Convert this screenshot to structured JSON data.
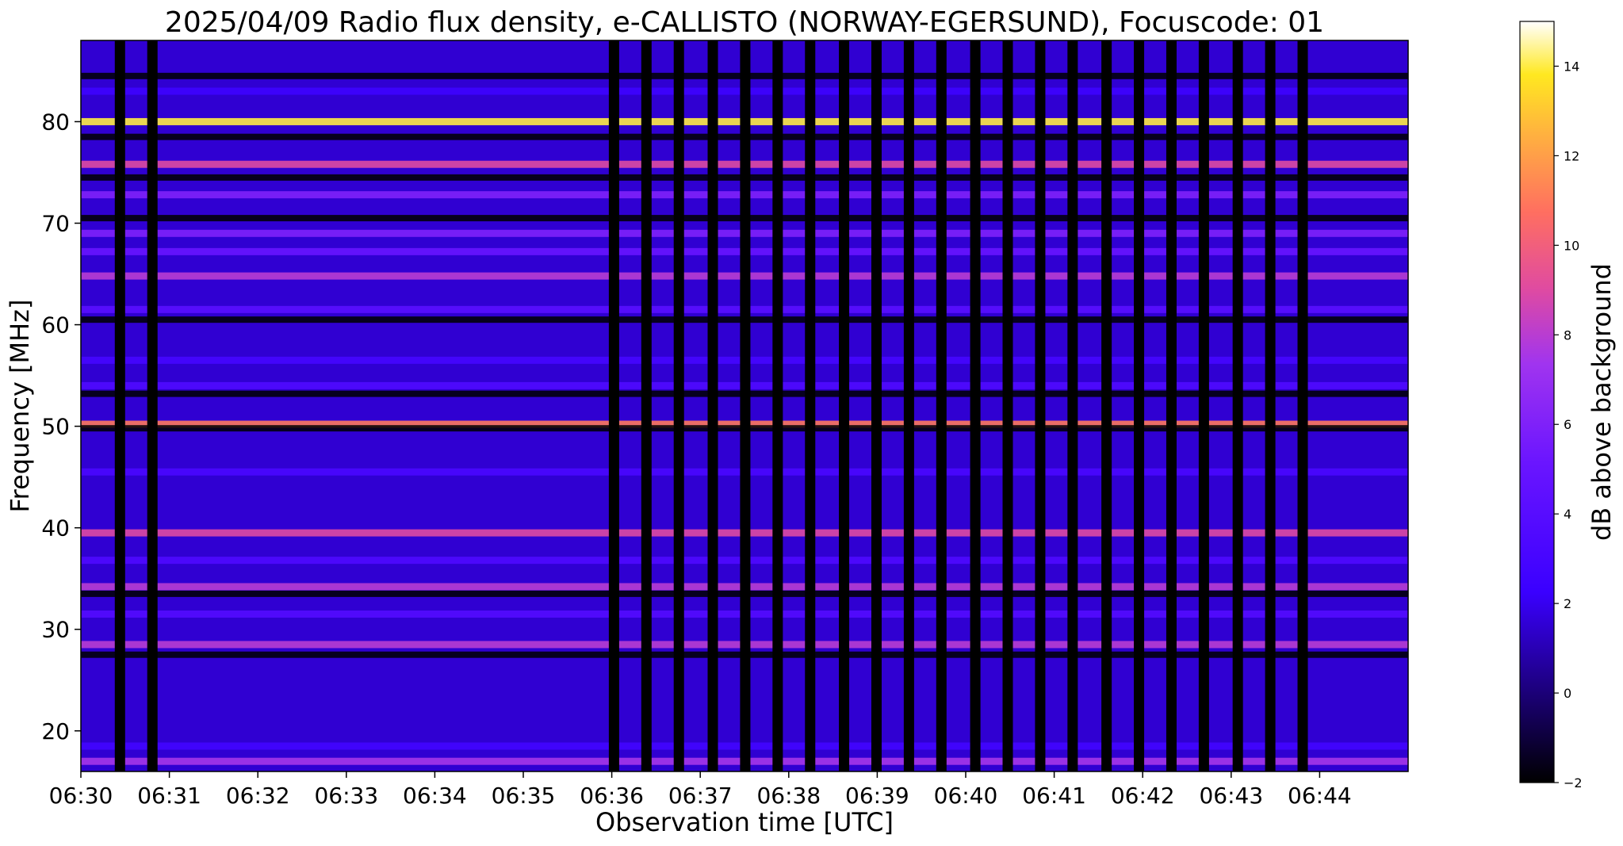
{
  "chart_data": [
    {
      "type": "heatmap",
      "title": "2025/04/09  Radio flux density, e-CALLISTO (NORWAY-EGERSUND), Focuscode: 01",
      "xlabel": "Observation time [UTC]",
      "ylabel": "Frequency [MHz]",
      "xlim": [
        "06:30",
        "06:45"
      ],
      "ylim": [
        16,
        88
      ],
      "x_ticks": [
        "06:30",
        "06:31",
        "06:32",
        "06:33",
        "06:34",
        "06:35",
        "06:36",
        "06:37",
        "06:38",
        "06:39",
        "06:40",
        "06:41",
        "06:42",
        "06:43",
        "06:44"
      ],
      "y_ticks": [
        20,
        30,
        40,
        50,
        60,
        70,
        80
      ],
      "colormap": "gnuplot2",
      "grid": false,
      "background_level_db": 1.5,
      "frequency_bands": [
        {
          "mhz": 17.0,
          "db": 7.5
        },
        {
          "mhz": 18.5,
          "db": 2.8
        },
        {
          "mhz": 28.5,
          "db": 8.0
        },
        {
          "mhz": 31.5,
          "db": 3.8
        },
        {
          "mhz": 34.2,
          "db": 8.0
        },
        {
          "mhz": 36.8,
          "db": 3.5
        },
        {
          "mhz": 39.5,
          "db": 9.0
        },
        {
          "mhz": 45.5,
          "db": 3.2
        },
        {
          "mhz": 50.2,
          "db": 11.0
        },
        {
          "mhz": 54.0,
          "db": 3.6
        },
        {
          "mhz": 56.5,
          "db": 3.0
        },
        {
          "mhz": 61.5,
          "db": 4.2
        },
        {
          "mhz": 64.8,
          "db": 8.0
        },
        {
          "mhz": 67.2,
          "db": 5.0
        },
        {
          "mhz": 69.0,
          "db": 6.0
        },
        {
          "mhz": 72.8,
          "db": 6.0
        },
        {
          "mhz": 75.8,
          "db": 9.0
        },
        {
          "mhz": 80.0,
          "db": 14.0
        },
        {
          "mhz": 83.0,
          "db": 2.5
        }
      ],
      "dark_frequency_bands_mhz": [
        27.5,
        33.5,
        49.8,
        53.2,
        60.5,
        70.5,
        74.5,
        78.5,
        84.5
      ],
      "periodic_dropouts": [
        {
          "start": "06:30:23",
          "end": "06:30:30"
        },
        {
          "start": "06:30:45",
          "end": "06:30:52"
        },
        {
          "start": "06:35:58",
          "end": "06:36:05"
        },
        {
          "start": "06:36:20",
          "end": "06:36:27"
        },
        {
          "start": "06:36:42",
          "end": "06:36:49"
        },
        {
          "start": "06:37:05",
          "end": "06:37:12"
        },
        {
          "start": "06:37:27",
          "end": "06:37:34"
        },
        {
          "start": "06:37:49",
          "end": "06:37:56"
        },
        {
          "start": "06:38:11",
          "end": "06:38:18"
        },
        {
          "start": "06:38:34",
          "end": "06:38:41"
        },
        {
          "start": "06:38:56",
          "end": "06:39:03"
        },
        {
          "start": "06:39:18",
          "end": "06:39:25"
        },
        {
          "start": "06:39:40",
          "end": "06:39:47"
        },
        {
          "start": "06:40:03",
          "end": "06:40:10"
        },
        {
          "start": "06:40:25",
          "end": "06:40:32"
        },
        {
          "start": "06:40:47",
          "end": "06:40:54"
        },
        {
          "start": "06:41:09",
          "end": "06:41:16"
        },
        {
          "start": "06:41:32",
          "end": "06:41:39"
        },
        {
          "start": "06:41:54",
          "end": "06:42:01"
        },
        {
          "start": "06:42:16",
          "end": "06:42:23"
        },
        {
          "start": "06:42:38",
          "end": "06:42:45"
        },
        {
          "start": "06:43:01",
          "end": "06:43:08"
        },
        {
          "start": "06:43:23",
          "end": "06:43:30"
        },
        {
          "start": "06:43:45",
          "end": "06:43:52"
        }
      ]
    },
    {
      "type": "colorbar",
      "label": "dB above background",
      "vmin": -2,
      "vmax": 15,
      "ticks": [
        -2,
        0,
        2,
        4,
        6,
        8,
        10,
        12,
        14
      ],
      "colormap": "gnuplot2"
    }
  ]
}
